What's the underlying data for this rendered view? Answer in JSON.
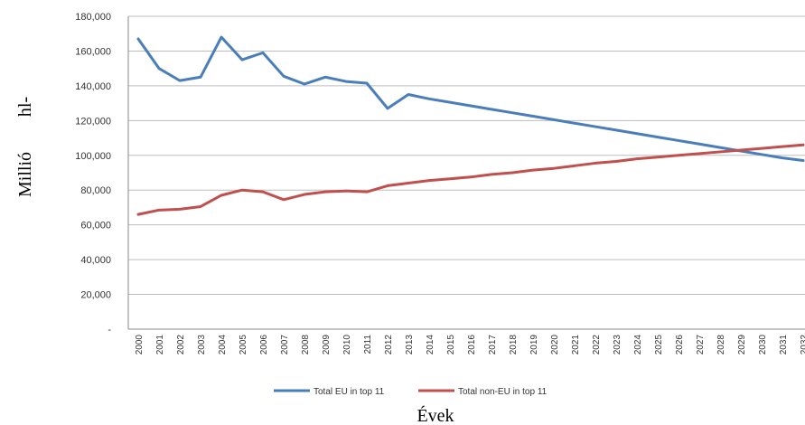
{
  "chart_data": {
    "type": "line",
    "xlabel": "Évek",
    "ylabel_words": [
      "Millió",
      "hl-"
    ],
    "ylim": [
      0,
      180000
    ],
    "yticks": [
      0,
      20000,
      40000,
      60000,
      80000,
      100000,
      120000,
      140000,
      160000,
      180000
    ],
    "ytick_labels": [
      "-",
      "20,000",
      "40,000",
      "60,000",
      "80,000",
      "100,000",
      "120,000",
      "140,000",
      "160,000",
      "180,000"
    ],
    "grid": "horizontal",
    "legend_position": "bottom",
    "x": [
      "2000",
      "2001",
      "2002",
      "2003",
      "2004",
      "2005",
      "2006",
      "2007",
      "2008",
      "2009",
      "2010",
      "2011",
      "2012",
      "2013",
      "2014",
      "2015",
      "2016",
      "2017",
      "2018",
      "2019",
      "2020",
      "2021",
      "2022",
      "2023",
      "2024",
      "2025",
      "2026",
      "2027",
      "2028",
      "2029",
      "2030",
      "2031",
      "2032"
    ],
    "series": [
      {
        "name": "Total EU in top 11",
        "color": "#4a7ebb",
        "values": [
          167000,
          150000,
          143000,
          145000,
          168000,
          155000,
          159000,
          145500,
          141000,
          145000,
          142500,
          141500,
          127000,
          135000,
          132500,
          130500,
          128500,
          126500,
          124500,
          122500,
          120500,
          118500,
          116500,
          114500,
          112500,
          110500,
          108500,
          106500,
          104500,
          102500,
          100500,
          98500,
          97000
        ]
      },
      {
        "name": "Total non-EU in top 11",
        "color": "#c0504d",
        "values": [
          66000,
          68500,
          69000,
          70500,
          77000,
          80000,
          79000,
          74500,
          77500,
          79000,
          79500,
          79000,
          82500,
          84000,
          85500,
          86500,
          87500,
          89000,
          90000,
          91500,
          92500,
          94000,
          95500,
          96500,
          98000,
          99000,
          100000,
          101000,
          102000,
          103000,
          104000,
          105000,
          106000
        ]
      }
    ]
  }
}
